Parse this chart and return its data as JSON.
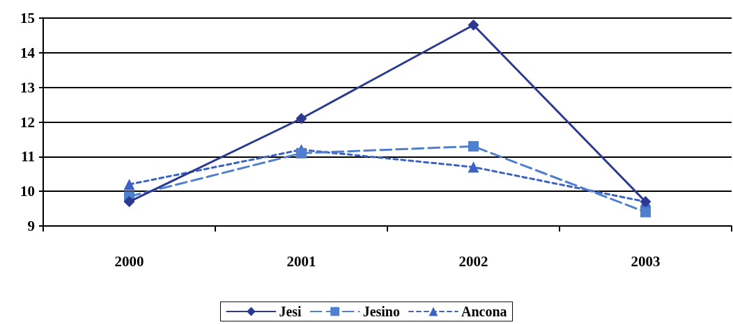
{
  "chart_data": {
    "type": "line",
    "categories": [
      "2000",
      "2001",
      "2002",
      "2003"
    ],
    "series": [
      {
        "name": "Jesi",
        "color": "#2b3990",
        "values": [
          9.7,
          12.1,
          14.8,
          9.7
        ],
        "marker": "diamond",
        "line_style": "solid"
      },
      {
        "name": "Jesino",
        "color": "#4f7fcf",
        "values": [
          9.85,
          11.1,
          11.3,
          9.4
        ],
        "marker": "square",
        "line_style": "dashed"
      },
      {
        "name": "Ancona",
        "color": "#3d63c2",
        "values": [
          10.2,
          11.2,
          10.7,
          9.7
        ],
        "marker": "triangle",
        "line_style": "dotted"
      }
    ],
    "ylim": [
      9,
      15
    ],
    "yticks": [
      9,
      10,
      11,
      12,
      13,
      14,
      15
    ],
    "grid": "y",
    "legend": "bottom"
  }
}
